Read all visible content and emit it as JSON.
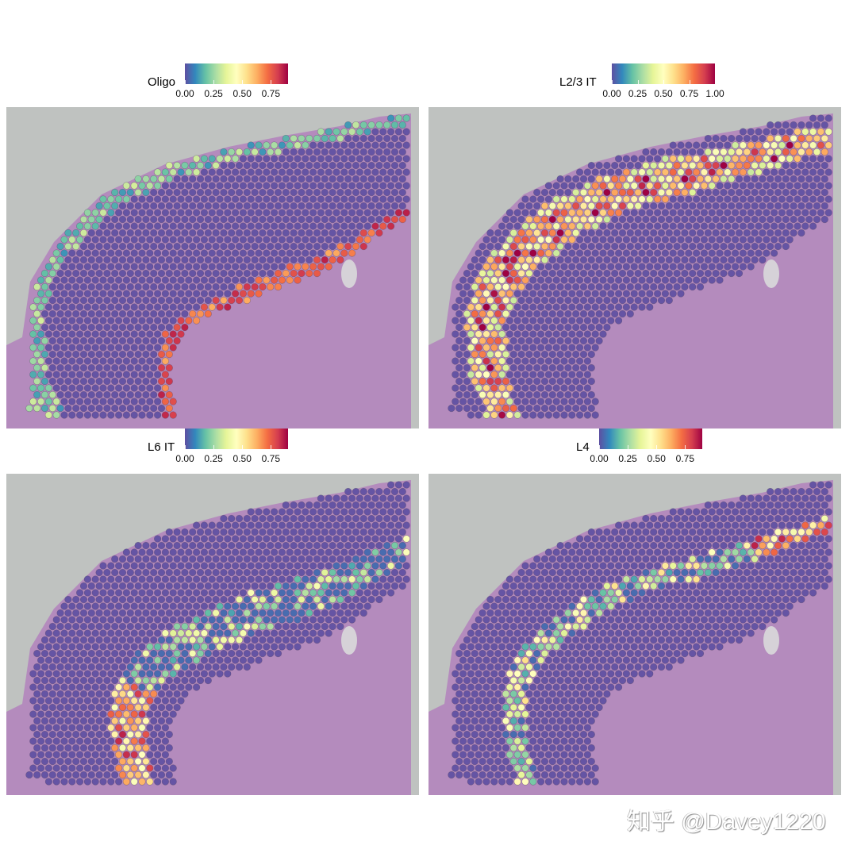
{
  "figure": {
    "background": "#ffffff",
    "tissue_bg": "#bfc2c0",
    "tissue_color": "#b48bbd",
    "spot_base_color": "#5e4fa2",
    "colormap": "Spectral (reversed)",
    "colormap_stops": [
      "#5e4fa2",
      "#3288bd",
      "#66c2a5",
      "#abdda4",
      "#e6f598",
      "#ffffbf",
      "#fee08b",
      "#fdae61",
      "#f46d43",
      "#d53e4f",
      "#9e0142"
    ]
  },
  "panels": [
    {
      "id": "oligo",
      "legend_title": "Oligo",
      "ticks": [
        "0.00",
        "0.25",
        "0.50",
        "0.75"
      ]
    },
    {
      "id": "l23it",
      "legend_title": "L2/3 IT",
      "ticks": [
        "0.00",
        "0.25",
        "0.50",
        "0.75",
        "1.00"
      ]
    },
    {
      "id": "l6it",
      "legend_title": "L6 IT",
      "ticks": [
        "0.00",
        "0.25",
        "0.50",
        "0.75"
      ]
    },
    {
      "id": "l4",
      "legend_title": "L4",
      "ticks": [
        "0.00",
        "0.25",
        "0.50",
        "0.75"
      ]
    }
  ],
  "watermark": "知乎 @Davey1220",
  "chart_data": [
    {
      "type": "heatmap",
      "subtype": "spatial-feature-plot",
      "title": "Oligo",
      "legend": {
        "title": "Oligo",
        "ticks": [
          0.0,
          0.25,
          0.5,
          0.75
        ],
        "range": [
          0,
          0.9
        ]
      },
      "pattern": "High values (~0.8-0.9) along the white-matter boundary arc from the lower-left edge of cortex up to the right; low-moderate (0.2-0.35) spots along the outer pial surface; rest ~0."
    },
    {
      "type": "heatmap",
      "subtype": "spatial-feature-plot",
      "title": "L2/3 IT",
      "legend": {
        "title": "L2/3 IT",
        "ticks": [
          0.0,
          0.25,
          0.5,
          0.75,
          1.0
        ],
        "range": [
          0,
          1.0
        ]
      },
      "pattern": "Broad high band (0.5-1.0) in superficial cortical layers just beneath the pial surface, following the arc from bottom-left to upper-right; rest ~0."
    },
    {
      "type": "heatmap",
      "subtype": "spatial-feature-plot",
      "title": "L6 IT",
      "legend": {
        "title": "L6 IT",
        "ticks": [
          0.0,
          0.25,
          0.5,
          0.75
        ],
        "range": [
          0,
          0.9
        ]
      },
      "pattern": "Deep-layer band with highest values (0.6-0.9) concentrated in the lower-left near white matter; moderate (0.2-0.5) scattered along a diagonal band toward upper-right."
    },
    {
      "type": "heatmap",
      "subtype": "spatial-feature-plot",
      "title": "L4",
      "legend": {
        "title": "L4",
        "ticks": [
          0.0,
          0.25,
          0.5,
          0.75
        ],
        "range": [
          0,
          0.9
        ]
      },
      "pattern": "Thin mid-cortical band (0.2-0.6) following the arc; highest values (0.7-0.9) in the upper-right portion."
    }
  ]
}
